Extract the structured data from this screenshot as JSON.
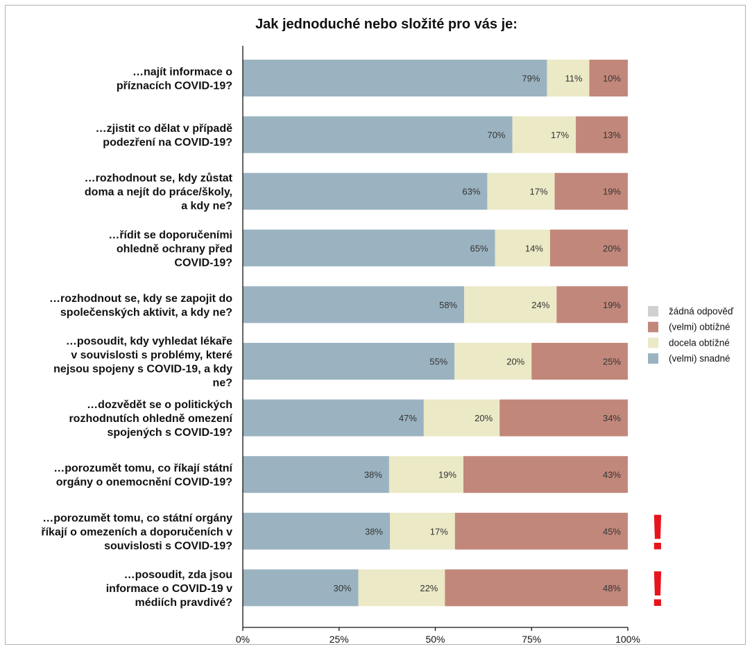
{
  "chart_data": {
    "type": "bar",
    "orientation": "horizontal",
    "stacked": true,
    "title": "Jak jednoduché nebo složité pro vás je:",
    "categories": [
      [
        "…najít informace o",
        "příznacích COVID-19?"
      ],
      [
        "…zjistit co dělat v případě",
        "podezření na COVID-19?"
      ],
      [
        "…rozhodnout se, kdy zůstat",
        "doma a nejít do práce/školy,",
        "a kdy ne?"
      ],
      [
        "…řídit se doporučeními",
        "ohledně ochrany před",
        "COVID-19?"
      ],
      [
        "…rozhodnout se, kdy se zapojit do",
        "společenských aktivit, a kdy ne?"
      ],
      [
        "…posoudit, kdy vyhledat lékaře",
        "v souvislosti s problémy, které",
        "nejsou spojeny s COVID-19, a kdy",
        "ne?"
      ],
      [
        "…dozvědět se o politických",
        "rozhodnutích ohledně omezení",
        "spojených s COVID-19?"
      ],
      [
        "…porozumět tomu, co říkají státní",
        "orgány o onemocnění COVID-19?"
      ],
      [
        "…porozumět tomu, co státní orgány",
        "říkají o omezeních a doporučeních v",
        "souvislosti s COVID-19?"
      ],
      [
        "…posoudit, zda jsou",
        "informace o COVID-19 v",
        "médiích pravdivé?"
      ]
    ],
    "series": [
      {
        "name": "(velmi) snadné",
        "color": "#9bb3c1",
        "values": [
          79,
          70,
          63,
          65,
          58,
          55,
          47,
          38,
          38,
          30
        ],
        "widths": [
          79,
          70,
          63.5,
          65.5,
          57.5,
          55,
          47,
          38,
          38.2,
          30
        ]
      },
      {
        "name": "docela obtížné",
        "color": "#ebe9c6",
        "values": [
          11,
          17,
          17,
          14,
          24,
          20,
          20,
          19,
          17,
          22
        ],
        "widths": [
          11,
          16.5,
          17.5,
          14.3,
          24,
          20,
          19.7,
          19.3,
          16.9,
          22.5
        ]
      },
      {
        "name": "(velmi) obtížné",
        "color": "#c2877b",
        "values": [
          10,
          13,
          19,
          20,
          19,
          25,
          34,
          43,
          45,
          48
        ],
        "widths": [
          10,
          13.5,
          19,
          20.2,
          18.5,
          25,
          33.3,
          42.7,
          44.9,
          47.5
        ]
      },
      {
        "name": "žádná odpověď",
        "color": "#d0d0d0",
        "values": [
          0,
          0,
          0,
          0,
          0,
          0,
          0,
          0,
          0,
          0
        ],
        "widths": [
          0,
          0,
          0,
          0,
          0,
          0,
          0,
          0,
          0,
          0
        ]
      }
    ],
    "value_labels": [
      [
        "79%",
        "11%",
        "10%"
      ],
      [
        "70%",
        "17%",
        "13%"
      ],
      [
        "63%",
        "17%",
        "19%"
      ],
      [
        "65%",
        "14%",
        "20%"
      ],
      [
        "58%",
        "24%",
        "19%"
      ],
      [
        "55%",
        "20%",
        "25%"
      ],
      [
        "47%",
        "20%",
        "34%"
      ],
      [
        "38%",
        "19%",
        "43%"
      ],
      [
        "38%",
        "17%",
        "45%"
      ],
      [
        "30%",
        "22%",
        "48%"
      ]
    ],
    "xticks": [
      "0%",
      "25%",
      "50%",
      "75%",
      "100%"
    ],
    "xlim": [
      0,
      100
    ],
    "legend": {
      "placement": "right",
      "order": [
        "žádná odpověď",
        "(velmi) obtížné",
        "docela obtížné",
        "(velmi) snadné"
      ]
    },
    "highlight_mark": "!",
    "highlight_rows": [
      8,
      9
    ],
    "highlight_color": "#e8141b",
    "grid": false
  }
}
